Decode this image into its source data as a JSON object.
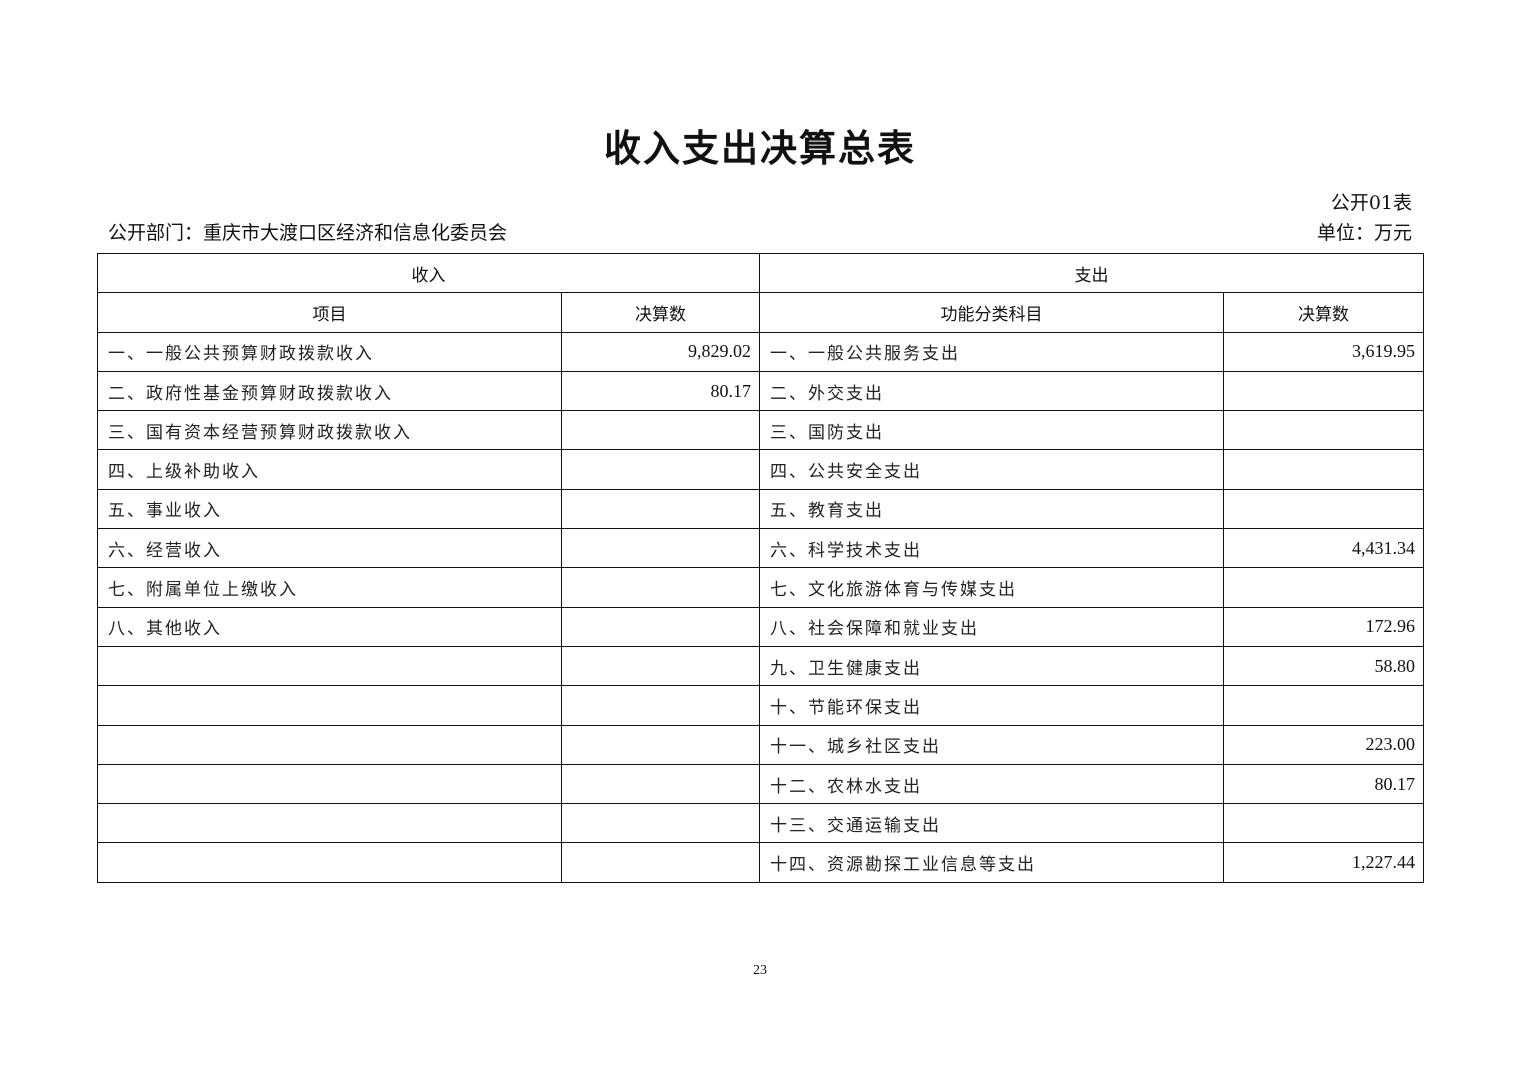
{
  "title": "收入支出决算总表",
  "form_no": "公开01表",
  "department": "公开部门：重庆市大渡口区经济和信息化委员会",
  "unit": "单位：万元",
  "table": {
    "group_headers": {
      "income": "收入",
      "expense": "支出"
    },
    "column_headers": [
      "项目",
      "决算数",
      "功能分类科目",
      "决算数"
    ],
    "rows": [
      {
        "income_item": "一、一般公共预算财政拨款收入",
        "income_amount": "9,829.02",
        "expense_item": "一、一般公共服务支出",
        "expense_amount": "3,619.95"
      },
      {
        "income_item": "二、政府性基金预算财政拨款收入",
        "income_amount": "80.17",
        "expense_item": "二、外交支出",
        "expense_amount": ""
      },
      {
        "income_item": "三、国有资本经营预算财政拨款收入",
        "income_amount": "",
        "expense_item": "三、国防支出",
        "expense_amount": ""
      },
      {
        "income_item": "四、上级补助收入",
        "income_amount": "",
        "expense_item": "四、公共安全支出",
        "expense_amount": ""
      },
      {
        "income_item": "五、事业收入",
        "income_amount": "",
        "expense_item": "五、教育支出",
        "expense_amount": ""
      },
      {
        "income_item": "六、经营收入",
        "income_amount": "",
        "expense_item": "六、科学技术支出",
        "expense_amount": "4,431.34"
      },
      {
        "income_item": "七、附属单位上缴收入",
        "income_amount": "",
        "expense_item": "七、文化旅游体育与传媒支出",
        "expense_amount": ""
      },
      {
        "income_item": "八、其他收入",
        "income_amount": "",
        "expense_item": "八、社会保障和就业支出",
        "expense_amount": "172.96"
      },
      {
        "income_item": "",
        "income_amount": "",
        "expense_item": "九、卫生健康支出",
        "expense_amount": "58.80"
      },
      {
        "income_item": "",
        "income_amount": "",
        "expense_item": "十、节能环保支出",
        "expense_amount": ""
      },
      {
        "income_item": "",
        "income_amount": "",
        "expense_item": "十一、城乡社区支出",
        "expense_amount": "223.00"
      },
      {
        "income_item": "",
        "income_amount": "",
        "expense_item": "十二、农林水支出",
        "expense_amount": "80.17"
      },
      {
        "income_item": "",
        "income_amount": "",
        "expense_item": "十三、交通运输支出",
        "expense_amount": ""
      },
      {
        "income_item": "",
        "income_amount": "",
        "expense_item": "十四、资源勘探工业信息等支出",
        "expense_amount": "1,227.44"
      }
    ]
  },
  "page_number": "23"
}
